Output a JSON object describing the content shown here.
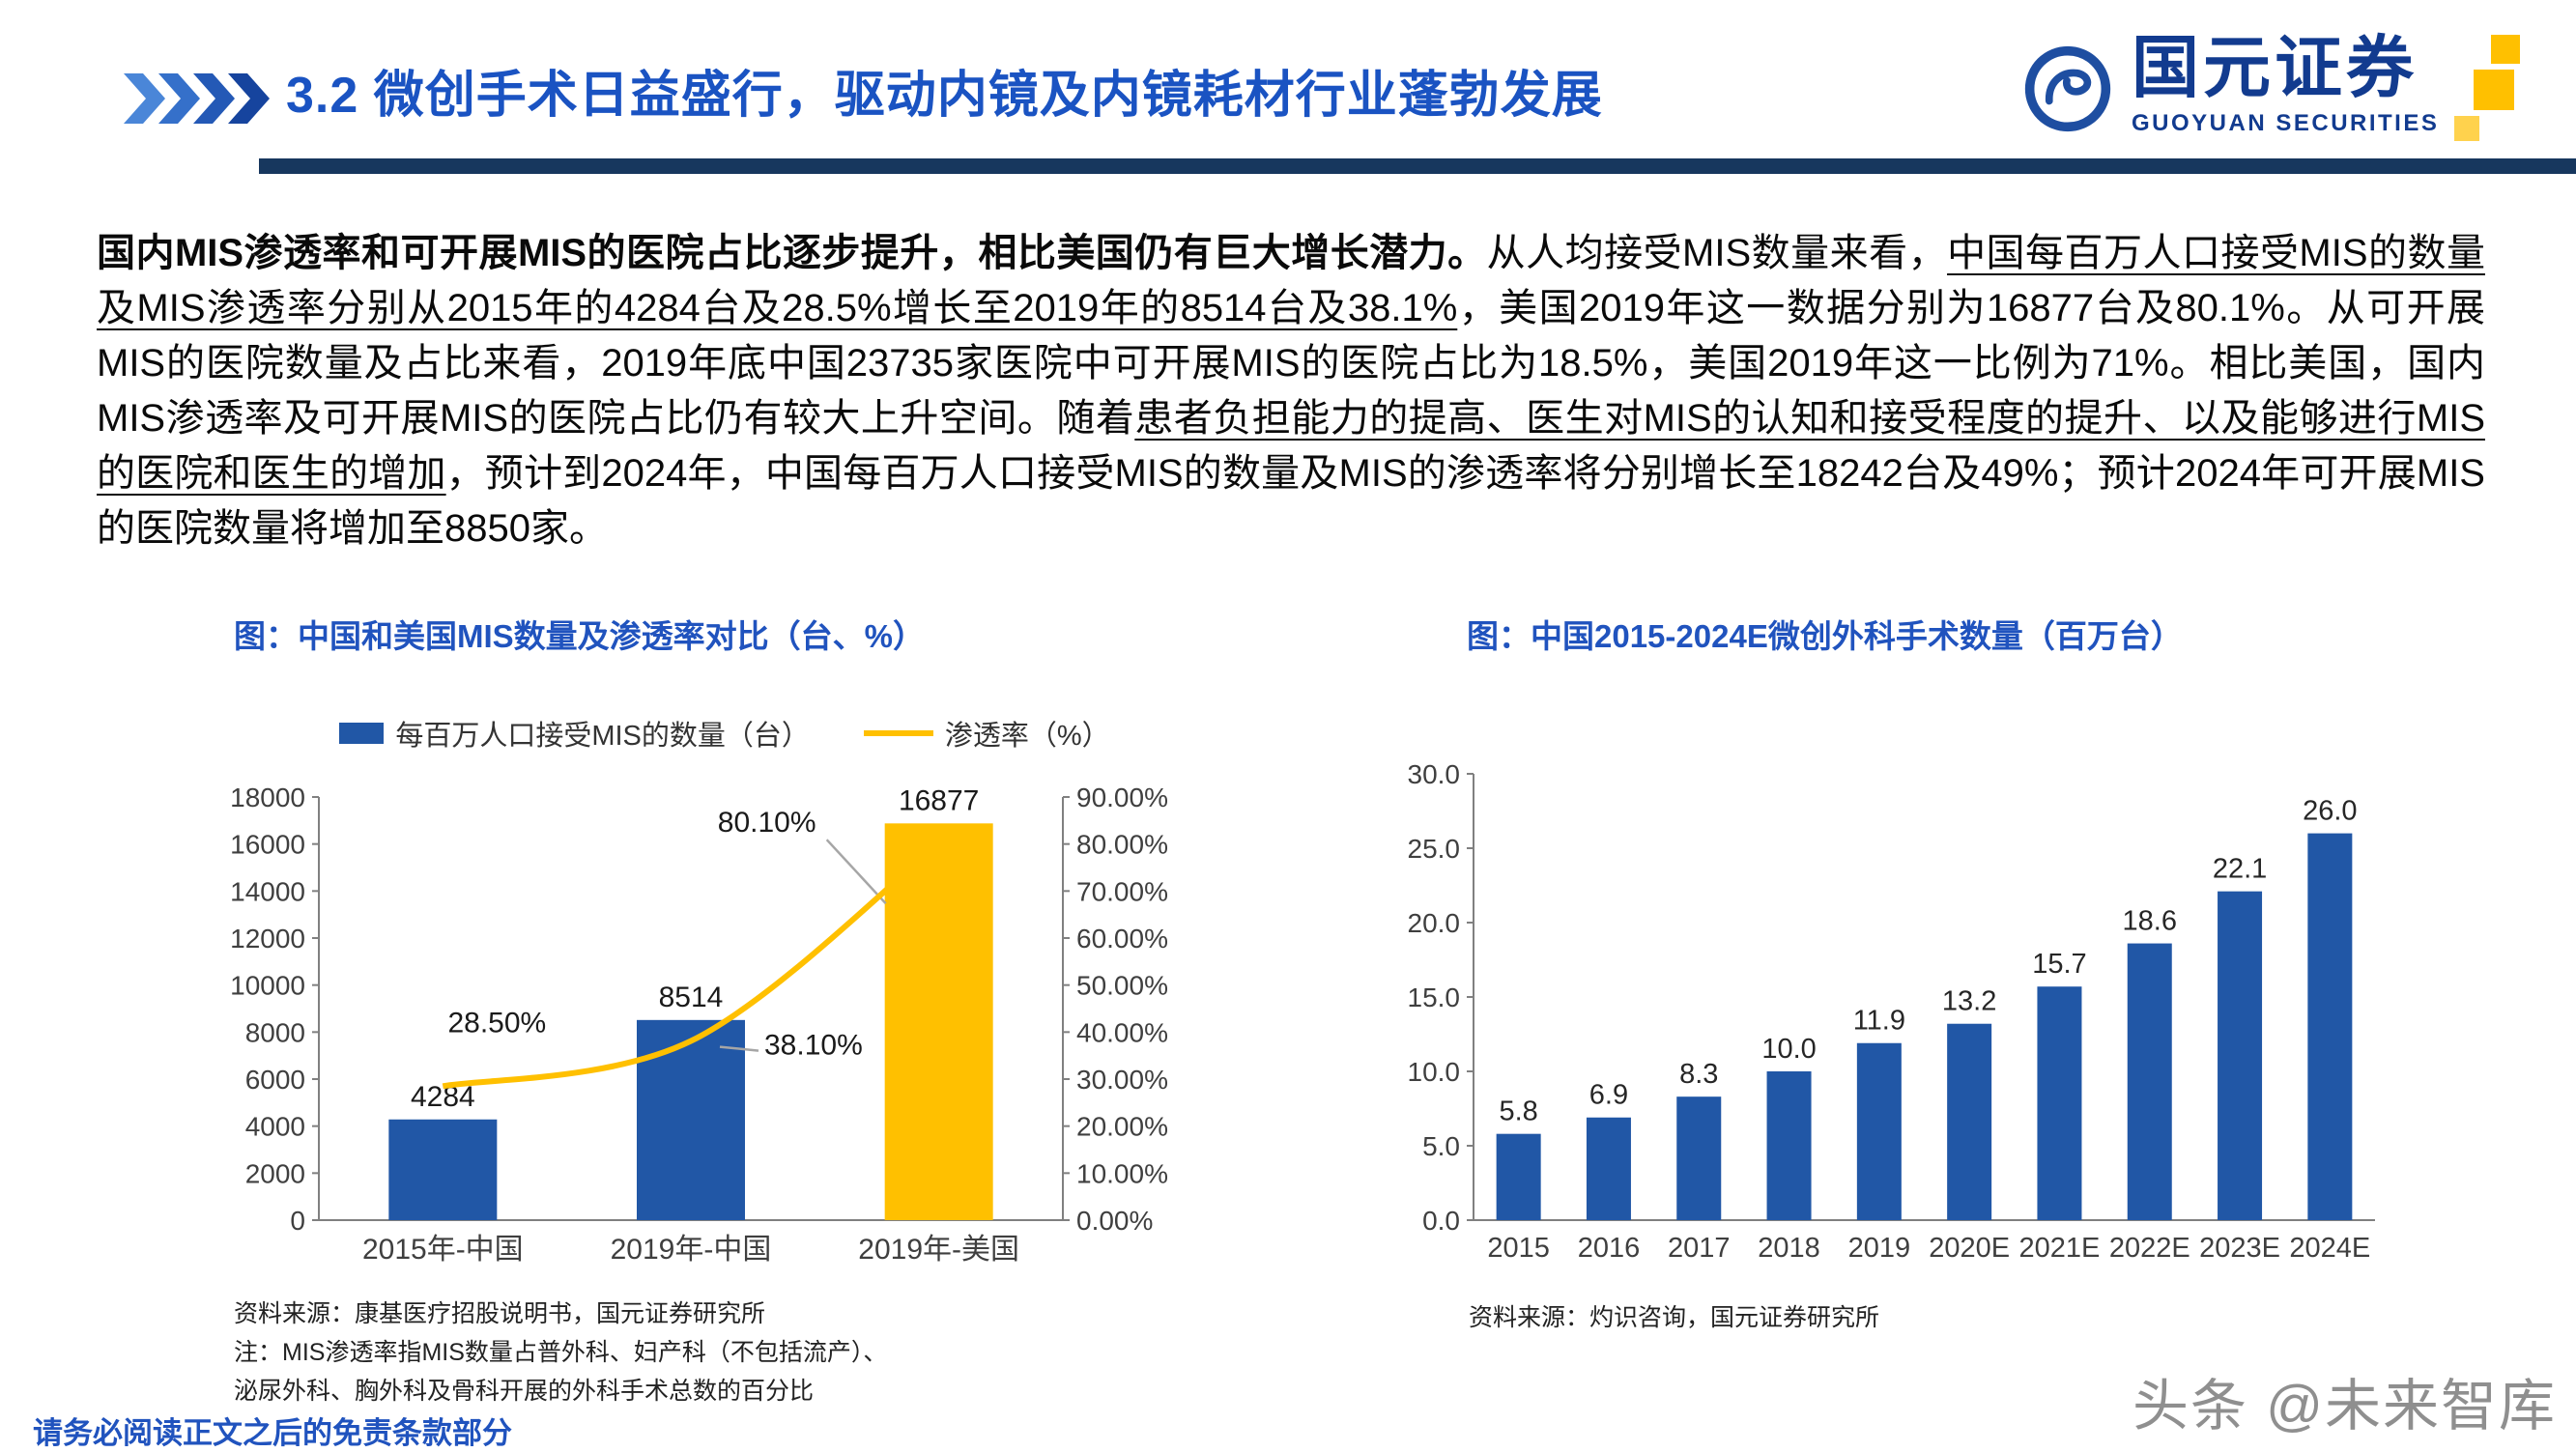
{
  "header": {
    "title": "3.2 微创手术日益盛行，驱动内镜及内镜耗材行业蓬勃发展",
    "logo": {
      "name": "国元证券",
      "name_en": "GUOYUAN SECURITIES"
    }
  },
  "paragraph": {
    "segments": [
      {
        "text": "国内MIS渗透率和可开展MIS的医院占比逐步提升，相比美国仍有巨大增长潜力。",
        "bold": true,
        "underline": false
      },
      {
        "text": "从人均接受MIS数量来看，",
        "bold": false,
        "underline": false
      },
      {
        "text": "中国每百万人口接受MIS的数量及MIS渗透率分别从2015年的4284台及28.5%增长至2019年的8514台及38.1%",
        "bold": false,
        "underline": true
      },
      {
        "text": "，美国2019年这一数据分别为16877台及80.1%。从可开展MIS的医院数量及占比来看，2019年底中国23735家医院中可开展MIS的医院占比为18.5%，美国2019年这一比例为71%。相比美国，国内MIS渗透率及可开展MIS的医院占比仍有较大上升空间。随着",
        "bold": false,
        "underline": false
      },
      {
        "text": "患者负担能力的提高、医生对MIS的认知和接受程度的提升、以及能够进行MIS的医院和医生的增加",
        "bold": false,
        "underline": true
      },
      {
        "text": "，预计到2024年，中国每百万人口接受MIS的数量及MIS的渗透率将分别增长至18242台及49%；预计2024年可开展MIS的医院数量将增加至8850家。",
        "bold": false,
        "underline": false
      }
    ]
  },
  "chart_data": [
    {
      "type": "bar+line combo",
      "title": "图：中国和美国MIS数量及渗透率对比（台、%）",
      "categories": [
        "2015年-中国",
        "2019年-中国",
        "2019年-美国"
      ],
      "series": [
        {
          "name": "每百万人口接受MIS的数量（台）",
          "type": "bar",
          "axis": "left",
          "values": [
            4284,
            8514,
            16877
          ],
          "colors": [
            "#2157A6",
            "#2157A6",
            "#FFC000"
          ]
        },
        {
          "name": "渗透率（%）",
          "type": "line",
          "axis": "right",
          "values": [
            28.5,
            38.1,
            80.1
          ],
          "labels": [
            "28.50%",
            "38.10%",
            "80.10%"
          ],
          "color": "#FFC000"
        }
      ],
      "left_axis": {
        "min": 0,
        "max": 18000,
        "ticks": [
          "18000",
          "16000",
          "14000",
          "12000",
          "10000",
          "8000",
          "6000",
          "4000",
          "2000",
          "0"
        ]
      },
      "right_axis": {
        "min": 0,
        "max": 90,
        "ticks": [
          "90.00%",
          "80.00%",
          "70.00%",
          "60.00%",
          "50.00%",
          "40.00%",
          "30.00%",
          "20.00%",
          "10.00%",
          "0.00%"
        ]
      },
      "legend_position": "top",
      "grid": false,
      "source": "资料来源：康基医疗招股说明书，国元证券研究所",
      "note": [
        "注：MIS渗透率指MIS数量占普外科、妇产科（不包括流产）、",
        "泌尿外科、胸外科及骨科开展的外科手术总数的百分比"
      ]
    },
    {
      "type": "bar",
      "title": "图：中国2015-2024E微创外科手术数量（百万台）",
      "categories": [
        "2015",
        "2016",
        "2017",
        "2018",
        "2019",
        "2020E",
        "2021E",
        "2022E",
        "2023E",
        "2024E"
      ],
      "values": [
        5.8,
        6.9,
        8.3,
        10.0,
        11.9,
        13.2,
        15.7,
        18.6,
        22.1,
        26.0
      ],
      "value_labels": [
        "5.8",
        "6.9",
        "8.3",
        "10.0",
        "11.9",
        "13.2",
        "15.7",
        "18.6",
        "22.1",
        "26.0"
      ],
      "ylim": [
        0,
        30
      ],
      "yticks": [
        "30.0",
        "25.0",
        "20.0",
        "15.0",
        "10.0",
        "5.0",
        "0.0"
      ],
      "grid": false,
      "bar_color": "#2157A6",
      "source": "资料来源：灼识咨询，国元证券研究所"
    }
  ],
  "footer": {
    "disclaimer": "请务必阅读正文之后的免责条款部分",
    "watermark": "头条 @未来智库"
  }
}
